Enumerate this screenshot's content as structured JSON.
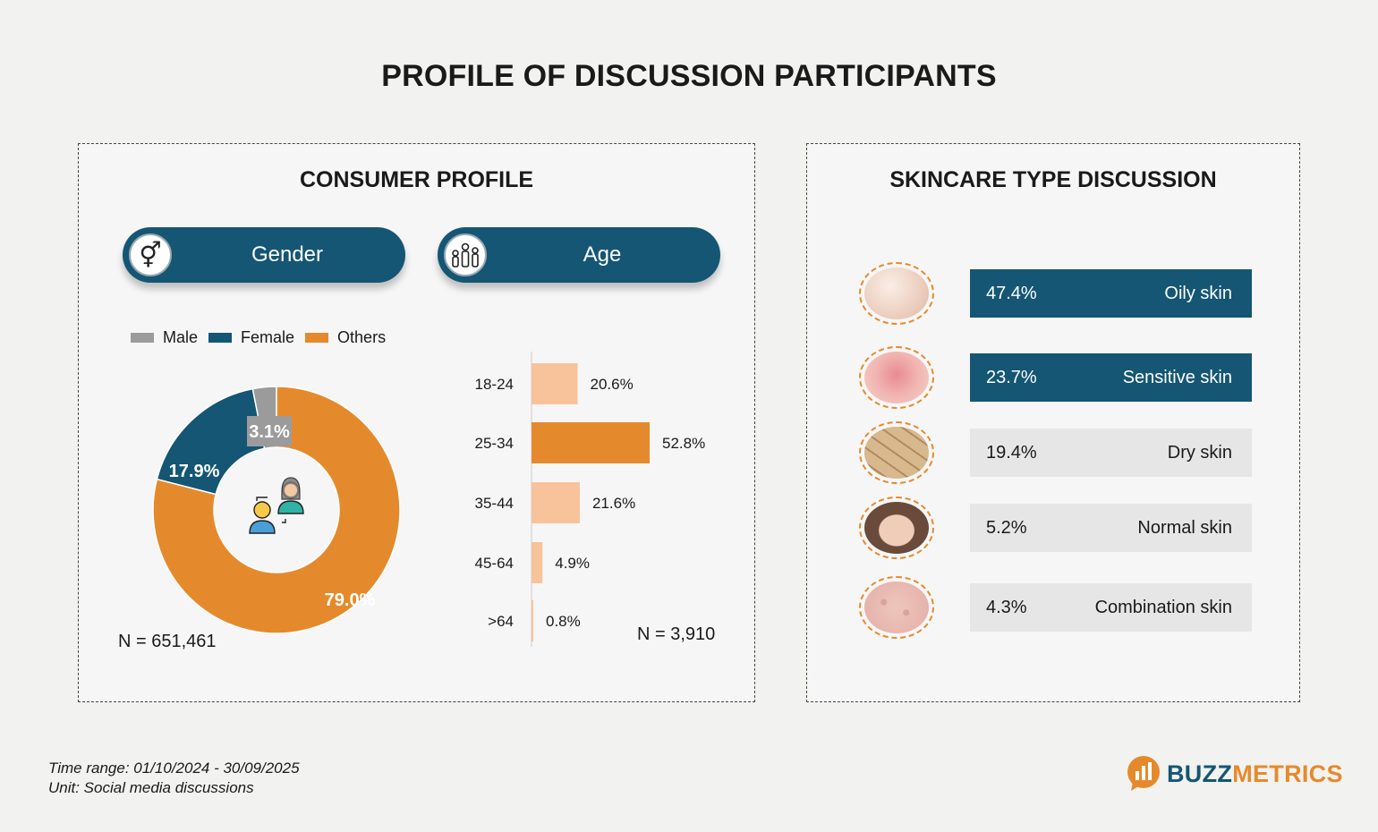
{
  "title": "PROFILE OF DISCUSSION PARTICIPANTS",
  "consumer_profile": {
    "title": "CONSUMER PROFILE",
    "gender_pill": "Gender",
    "age_pill": "Age",
    "gender_n": "N = 651,461",
    "age_n": "N = 3,910"
  },
  "skincare": {
    "title": "SKINCARE TYPE DISCUSSION",
    "items": [
      {
        "pct": "47.4%",
        "label": "Oily skin",
        "highlight": true
      },
      {
        "pct": "23.7%",
        "label": "Sensitive skin",
        "highlight": true
      },
      {
        "pct": "19.4%",
        "label": "Dry skin",
        "highlight": false
      },
      {
        "pct": "5.2%",
        "label": "Normal skin",
        "highlight": false
      },
      {
        "pct": "4.3%",
        "label": "Combination skin",
        "highlight": false
      }
    ]
  },
  "footer": {
    "time_range": "Time range: 01/10/2024 - 30/09/2025",
    "unit": "Unit: Social media discussions"
  },
  "logo": {
    "part1": "BUZZ",
    "part2": "METRICS"
  },
  "colors": {
    "navy": "#145673",
    "orange": "#e58a2c",
    "light_orange": "#f8c39a",
    "grey": "#9b9b9b",
    "light_grey": "#e6e6e6"
  },
  "chart_data": [
    {
      "type": "pie",
      "title": "Gender",
      "categories": [
        "Male",
        "Female",
        "Others"
      ],
      "values": [
        3.1,
        17.9,
        79.0
      ],
      "value_labels": [
        "3.1%",
        "17.9%",
        "79.0%"
      ],
      "colors": [
        "#9b9b9b",
        "#145673",
        "#e58a2c"
      ],
      "legend": "top"
    },
    {
      "type": "bar",
      "title": "Age",
      "orientation": "horizontal",
      "categories": [
        "18-24",
        "25-34",
        "35-44",
        "45-64",
        ">64"
      ],
      "values": [
        20.6,
        52.8,
        21.6,
        4.9,
        0.8
      ],
      "value_labels": [
        "20.6%",
        "52.8%",
        "21.6%",
        "4.9%",
        "0.8%"
      ],
      "max_color": "#e58a2c",
      "base_color": "#f8c39a"
    },
    {
      "type": "table",
      "title": "Skincare type discussion",
      "categories": [
        "Oily skin",
        "Sensitive skin",
        "Dry skin",
        "Normal skin",
        "Combination skin"
      ],
      "values": [
        47.4,
        23.7,
        19.4,
        5.2,
        4.3
      ]
    }
  ]
}
